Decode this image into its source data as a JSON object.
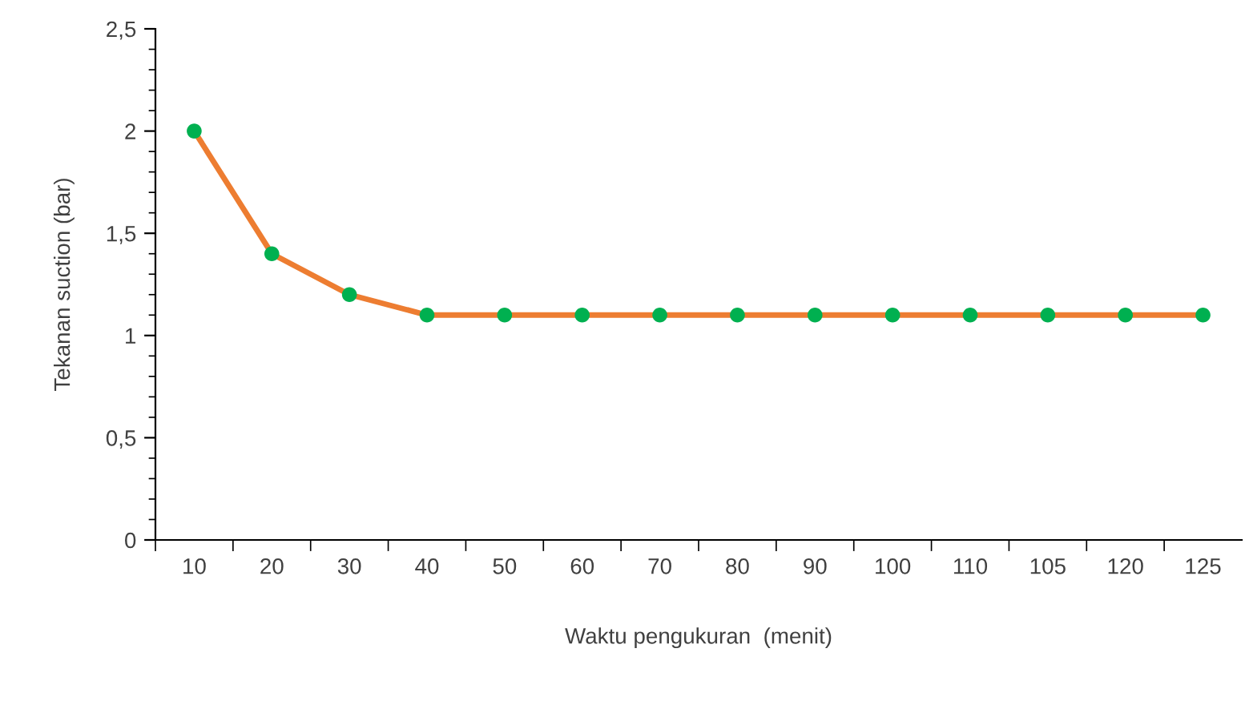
{
  "chart_data": {
    "type": "line",
    "xlabel": "Waktu pengukuran  (menit)",
    "ylabel": "Tekanan suction (bar)",
    "categories": [
      "10",
      "20",
      "30",
      "40",
      "50",
      "60",
      "70",
      "80",
      "90",
      "100",
      "110",
      "105",
      "120",
      "125"
    ],
    "series": [
      {
        "color": "#ed7d31",
        "colors": [
          "#00b050",
          "#00b050",
          "#00b050",
          "#00b050",
          "#00b050",
          "#00b050",
          "#00b050",
          "#00b050",
          "#00b050",
          "#00b050",
          "#00b050",
          "#00b050",
          "#00b050",
          "#00b050"
        ],
        "values": [
          2,
          1.4,
          1.2,
          1.1,
          1.1,
          1.1,
          1.1,
          1.1,
          1.1,
          1.1,
          1.1,
          1.1,
          1.1,
          1.1
        ]
      }
    ],
    "ylim": [
      0,
      2.5
    ],
    "yticks": [
      0,
      {
        "value": 0.5,
        "label": "0,5"
      },
      1,
      {
        "value": 1.5,
        "label": "1,5"
      },
      2,
      {
        "value": 2.5,
        "label": "2,5"
      }
    ],
    "marker": "circle",
    "line_style": "solid",
    "grid": false,
    "legend": false
  }
}
